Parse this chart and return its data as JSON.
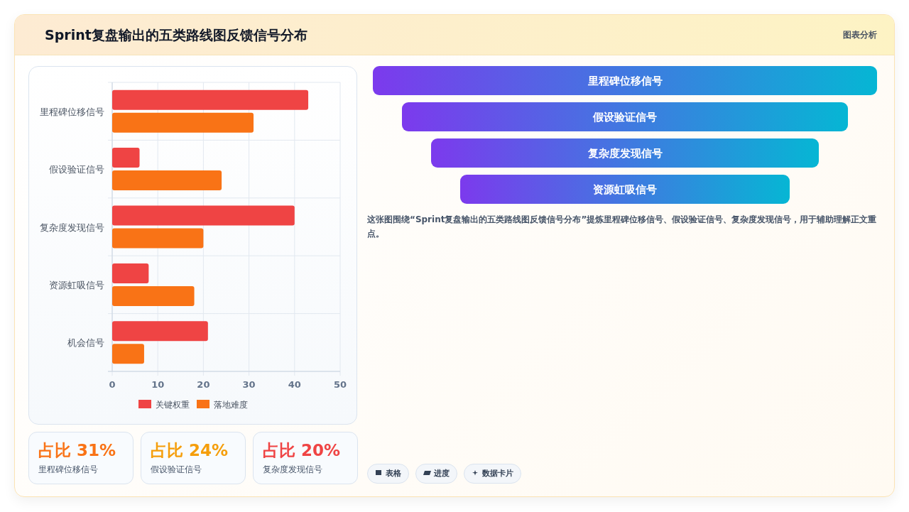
{
  "chart_data": [
    {
      "type": "bar",
      "orientation": "horizontal",
      "title": "Sprint复盘输出的五类路线图反馈信号分布",
      "categories": [
        "里程碑位移信号",
        "假设验证信号",
        "复杂度发现信号",
        "资源虹吸信号",
        "机会信号"
      ],
      "series": [
        {
          "name": "关键权重",
          "color": "#ef4444",
          "values": [
            43,
            6,
            40,
            8,
            21
          ]
        },
        {
          "name": "落地难度",
          "color": "#f97316",
          "values": [
            31,
            24,
            20,
            18,
            7
          ]
        }
      ],
      "xlim": [
        0,
        50
      ],
      "xticks": [
        0,
        10,
        20,
        30,
        40,
        50
      ],
      "grid": true,
      "legend": "bottom"
    },
    {
      "type": "other",
      "categories": [
        "里程碑位移信号",
        "假设验证信号",
        "复杂度发现信号",
        "资源虹吸信号"
      ],
      "annotations": [
        "这张图围绕“Sprint复盘输出的五类路线图反馈信号分布”提炼里程碑位移信号、假设验证信号、复杂度发现信号，用于辅助理解正文重点。"
      ]
    },
    {
      "type": "other",
      "annotations": [
        "图表分析",
        "占比 31%",
        "里程碑位移信号",
        "占比 24%",
        "假设验证信号",
        "占比 20%",
        "复杂度发现信号",
        "表格",
        "进度",
        "数据卡片"
      ]
    }
  ]
}
